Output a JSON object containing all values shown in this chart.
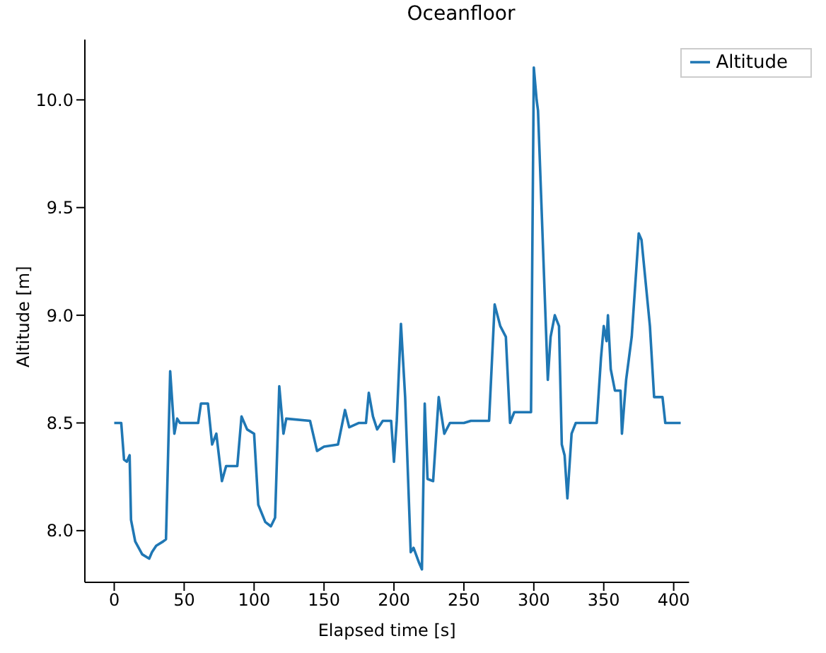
{
  "chart_data": {
    "type": "line",
    "title": "Oceanfloor",
    "xlabel": "Elapsed time [s]",
    "ylabel": "Altitude [m]",
    "x": [
      0,
      5,
      7,
      9,
      11,
      12,
      15,
      20,
      25,
      27,
      30,
      35,
      37,
      40,
      43,
      45,
      47,
      60,
      62,
      67,
      70,
      73,
      77,
      80,
      88,
      91,
      95,
      100,
      103,
      108,
      112,
      115,
      118,
      121,
      123,
      140,
      145,
      150,
      160,
      165,
      168,
      175,
      180,
      182,
      185,
      188,
      192,
      198,
      200,
      202,
      205,
      208,
      212,
      214,
      218,
      220,
      222,
      224,
      228,
      232,
      236,
      240,
      250,
      255,
      268,
      272,
      276,
      280,
      283,
      286,
      298,
      300,
      302,
      303,
      310,
      312,
      315,
      318,
      320,
      322,
      324,
      327,
      330,
      335,
      345,
      348,
      350,
      352,
      353,
      355,
      358,
      362,
      363,
      366,
      370,
      375,
      377,
      383,
      386,
      392,
      394,
      400,
      405
    ],
    "series": [
      {
        "name": "Altitude",
        "color": "#1f77b4",
        "values": [
          8.5,
          8.5,
          8.33,
          8.32,
          8.35,
          8.05,
          7.95,
          7.89,
          7.87,
          7.9,
          7.93,
          7.95,
          7.96,
          8.74,
          8.45,
          8.52,
          8.5,
          8.5,
          8.59,
          8.59,
          8.4,
          8.45,
          8.23,
          8.3,
          8.3,
          8.53,
          8.47,
          8.45,
          8.12,
          8.04,
          8.02,
          8.06,
          8.67,
          8.45,
          8.52,
          8.51,
          8.37,
          8.39,
          8.4,
          8.56,
          8.48,
          8.5,
          8.5,
          8.64,
          8.53,
          8.47,
          8.51,
          8.51,
          8.32,
          8.51,
          8.96,
          8.62,
          7.9,
          7.92,
          7.85,
          7.82,
          8.59,
          8.24,
          8.23,
          8.62,
          8.45,
          8.5,
          8.5,
          8.51,
          8.51,
          9.05,
          8.95,
          8.9,
          8.5,
          8.55,
          8.55,
          10.15,
          10.0,
          9.95,
          8.7,
          8.9,
          9.0,
          8.95,
          8.4,
          8.35,
          8.15,
          8.45,
          8.5,
          8.5,
          8.5,
          8.8,
          8.95,
          8.88,
          9.0,
          8.75,
          8.65,
          8.65,
          8.45,
          8.7,
          8.9,
          9.38,
          9.35,
          8.95,
          8.62,
          8.62,
          8.5,
          8.5,
          8.5
        ]
      }
    ],
    "xlim": [
      -21,
      411
    ],
    "xticks": [
      0,
      50,
      100,
      150,
      200,
      250,
      300,
      350,
      400
    ],
    "ylim": [
      7.76,
      10.28
    ],
    "yticks": [
      {
        "value": 8,
        "label": "8.0"
      },
      8.5,
      {
        "value": 9,
        "label": "9.0"
      },
      9.5,
      {
        "value": 10,
        "label": "10.0"
      }
    ],
    "legend": "top right",
    "marker": "none",
    "line_style": "solid"
  }
}
